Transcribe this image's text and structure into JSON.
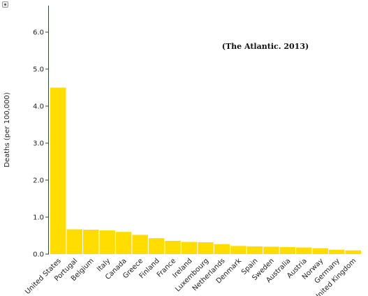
{
  "chart_data": {
    "type": "bar",
    "ylabel": "Deaths (per 100,000)",
    "xlabel": "",
    "ylim": [
      0,
      6.8
    ],
    "yticks": [
      "0.0",
      "1.0",
      "2.0",
      "3.0",
      "4.0",
      "5.0",
      "6.0"
    ],
    "ytick_values": [
      0,
      1,
      2,
      3,
      4,
      5,
      6
    ],
    "annotation": "(The Atlantic. 2013)",
    "categories": [
      "United States",
      "Portugal",
      "Belgium",
      "Italy",
      "Canada",
      "Greece",
      "Finland",
      "France",
      "Ireland",
      "Luxembourg",
      "Netherlands",
      "Denmark",
      "Spain",
      "Sweden",
      "Australia",
      "Austria",
      "Norway",
      "Germany",
      "United Kingdom"
    ],
    "values": [
      4.5,
      0.67,
      0.66,
      0.64,
      0.6,
      0.52,
      0.43,
      0.36,
      0.33,
      0.32,
      0.27,
      0.22,
      0.21,
      0.2,
      0.19,
      0.18,
      0.16,
      0.12,
      0.1
    ],
    "bar_color": "#ffdd00",
    "axis_color": "#2e4d2e"
  }
}
